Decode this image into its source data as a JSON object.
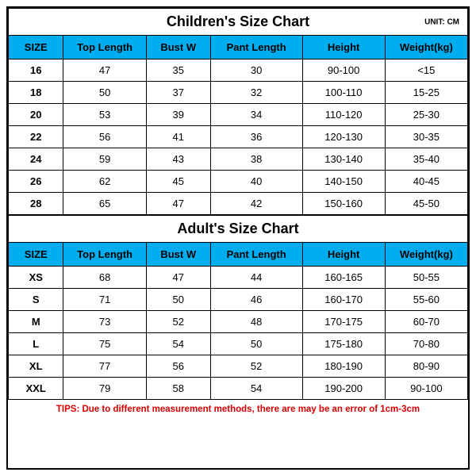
{
  "unit_label": "UNIT: CM",
  "colors": {
    "header_bg": "#00aeef",
    "border": "#000000",
    "tips_color": "#d40000",
    "background": "#ffffff"
  },
  "columns": [
    "SIZE",
    "Top Length",
    "Bust W",
    "Pant Length",
    "Height",
    "Weight(kg)"
  ],
  "children": {
    "title": "Children's Size Chart",
    "rows": [
      {
        "size": "16",
        "top": "47",
        "bust": "35",
        "pant": "30",
        "height": "90-100",
        "weight": "<15"
      },
      {
        "size": "18",
        "top": "50",
        "bust": "37",
        "pant": "32",
        "height": "100-110",
        "weight": "15-25"
      },
      {
        "size": "20",
        "top": "53",
        "bust": "39",
        "pant": "34",
        "height": "110-120",
        "weight": "25-30"
      },
      {
        "size": "22",
        "top": "56",
        "bust": "41",
        "pant": "36",
        "height": "120-130",
        "weight": "30-35"
      },
      {
        "size": "24",
        "top": "59",
        "bust": "43",
        "pant": "38",
        "height": "130-140",
        "weight": "35-40"
      },
      {
        "size": "26",
        "top": "62",
        "bust": "45",
        "pant": "40",
        "height": "140-150",
        "weight": "40-45"
      },
      {
        "size": "28",
        "top": "65",
        "bust": "47",
        "pant": "42",
        "height": "150-160",
        "weight": "45-50"
      }
    ]
  },
  "adult": {
    "title": "Adult's Size Chart",
    "rows": [
      {
        "size": "XS",
        "top": "68",
        "bust": "47",
        "pant": "44",
        "height": "160-165",
        "weight": "50-55"
      },
      {
        "size": "S",
        "top": "71",
        "bust": "50",
        "pant": "46",
        "height": "160-170",
        "weight": "55-60"
      },
      {
        "size": "M",
        "top": "73",
        "bust": "52",
        "pant": "48",
        "height": "170-175",
        "weight": "60-70"
      },
      {
        "size": "L",
        "top": "75",
        "bust": "54",
        "pant": "50",
        "height": "175-180",
        "weight": "70-80"
      },
      {
        "size": "XL",
        "top": "77",
        "bust": "56",
        "pant": "52",
        "height": "180-190",
        "weight": "80-90"
      },
      {
        "size": "XXL",
        "top": "79",
        "bust": "58",
        "pant": "54",
        "height": "190-200",
        "weight": "90-100"
      }
    ]
  },
  "tips": "TIPS: Due to different measurement methods, there are may be an error of 1cm-3cm"
}
